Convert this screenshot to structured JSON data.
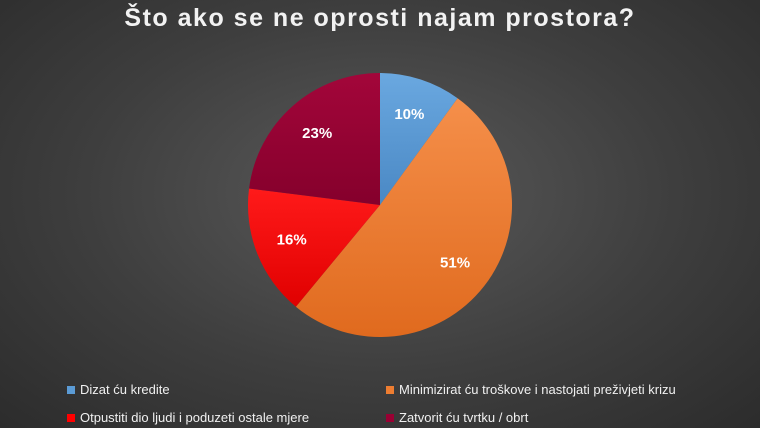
{
  "chart_data": {
    "type": "pie",
    "title": "Što ako se ne oprosti najam prostora?",
    "slices": [
      {
        "label": "Dizat ću kredite",
        "value": 10,
        "display": "10%",
        "color": "#5b9bd5"
      },
      {
        "label": "Minimizirat ću troškove i nastojati preživjeti krizu",
        "value": 51,
        "display": "51%",
        "color": "#ed7d31"
      },
      {
        "label": "Otpustiti dio ljudi i poduzeti ostale mjere",
        "value": 16,
        "display": "16%",
        "color": "#ff0000"
      },
      {
        "label": "Zatvorit ću tvrtku / obrt",
        "value": 23,
        "display": "23%",
        "color": "#990033"
      }
    ],
    "legend_position": "bottom"
  }
}
